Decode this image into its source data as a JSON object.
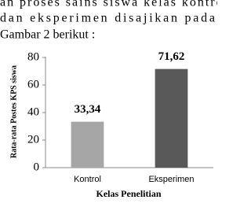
{
  "text_lines": [
    "an proses sains siswa kelas kontrol",
    "dan eksperimen disajikan pada",
    "Gambar 2 berikut :"
  ],
  "chart_data": {
    "type": "bar",
    "categories": [
      "Kontrol",
      "Eksperimen"
    ],
    "values": [
      33.34,
      71.62
    ],
    "value_labels": [
      "33,34",
      "71,62"
    ],
    "colors": [
      "#a6a6a6",
      "#595959"
    ],
    "xlabel": "Kelas Penelitian",
    "ylabel": "Rata-rata Postes KPS siswa",
    "ylim": [
      0,
      80
    ],
    "yticks": [
      0,
      20,
      40,
      60,
      80
    ],
    "grid": false
  }
}
